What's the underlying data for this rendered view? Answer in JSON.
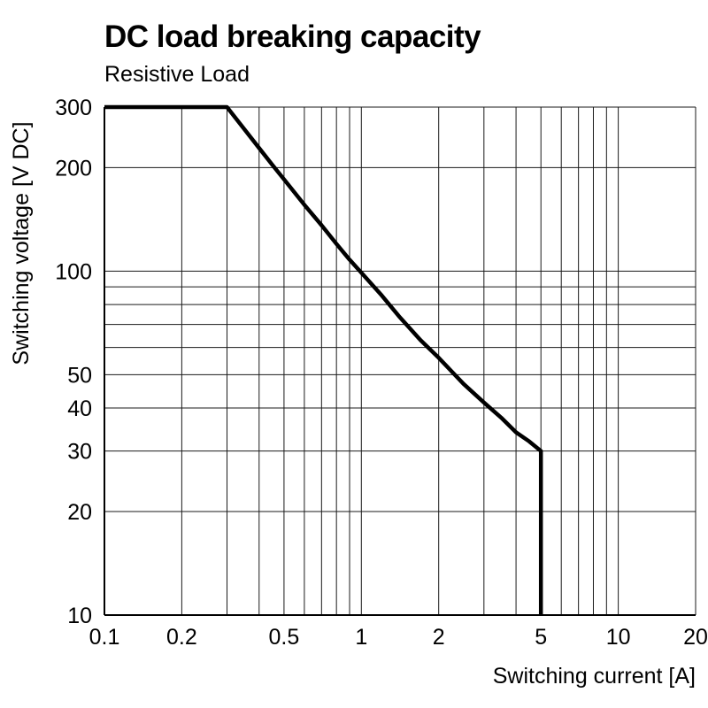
{
  "header": {
    "title": "DC load breaking capacity",
    "subtitle": "Resistive Load"
  },
  "chart_data": {
    "type": "line",
    "title": "DC load breaking capacity",
    "subtitle": "Resistive Load",
    "xlabel": "Switching current [A]",
    "ylabel": "Switching voltage [V DC]",
    "x_scale": "log",
    "y_scale": "log",
    "xlim": [
      0.1,
      20
    ],
    "ylim": [
      10,
      300
    ],
    "x_tick_labels": [
      "0.1",
      "0.2",
      "0.5",
      "1",
      "2",
      "5",
      "10",
      "20"
    ],
    "x_tick_values": [
      0.1,
      0.2,
      0.5,
      1,
      2,
      5,
      10,
      20
    ],
    "y_tick_labels": [
      "10",
      "20",
      "30",
      "40",
      "50",
      "100",
      "200",
      "300"
    ],
    "y_tick_values": [
      10,
      20,
      30,
      40,
      50,
      100,
      200,
      300
    ],
    "x_gridlines": [
      0.1,
      0.2,
      0.3,
      0.4,
      0.5,
      0.6,
      0.7,
      0.8,
      0.9,
      1,
      2,
      3,
      4,
      5,
      6,
      7,
      8,
      9,
      10,
      20
    ],
    "y_gridlines": [
      10,
      20,
      30,
      40,
      50,
      60,
      70,
      80,
      90,
      100,
      200,
      300
    ],
    "grid": true,
    "legend": "none",
    "line_color": "#000000",
    "grid_color": "#1a1a1a",
    "series": [
      {
        "name": "Resistive Load",
        "points": [
          [
            0.1,
            300
          ],
          [
            0.3,
            300
          ],
          [
            0.35,
            259
          ],
          [
            0.4,
            228
          ],
          [
            0.45,
            204
          ],
          [
            0.5,
            185
          ],
          [
            0.6,
            156
          ],
          [
            0.7,
            136
          ],
          [
            0.8,
            120
          ],
          [
            0.9,
            108
          ],
          [
            1.0,
            99
          ],
          [
            1.2,
            85
          ],
          [
            1.4,
            74
          ],
          [
            1.7,
            63
          ],
          [
            2.0,
            56
          ],
          [
            2.5,
            47
          ],
          [
            3.0,
            41.5
          ],
          [
            3.5,
            37.5
          ],
          [
            4.0,
            34
          ],
          [
            4.5,
            32
          ],
          [
            5.0,
            30
          ],
          [
            5.0,
            10
          ]
        ]
      }
    ]
  }
}
